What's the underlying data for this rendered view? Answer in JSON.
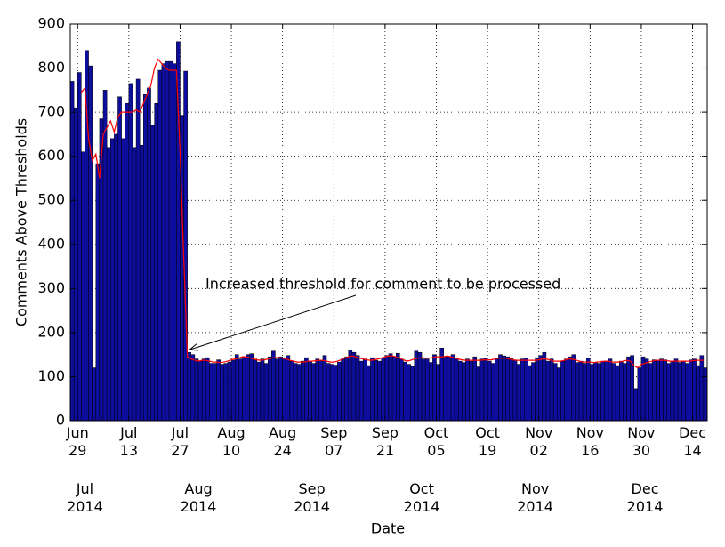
{
  "chart_data": {
    "type": "bar",
    "x_label": "Date",
    "y_label": "Comments Above Thresholds",
    "annotation": "Increased threshold for comment to be processed",
    "ylim": [
      0,
      900
    ],
    "yticks": [
      0,
      100,
      200,
      300,
      400,
      500,
      600,
      700,
      800,
      900
    ],
    "xlim": [
      "2014-06-27",
      "2014-12-18"
    ],
    "xticks": [
      {
        "value": "2014-06-29",
        "label": "Jun\n29"
      },
      {
        "value": "2014-07-13",
        "label": "Jul\n13"
      },
      {
        "value": "2014-07-27",
        "label": "Jul\n27"
      },
      {
        "value": "2014-08-10",
        "label": "Aug\n10"
      },
      {
        "value": "2014-08-24",
        "label": "Aug\n24"
      },
      {
        "value": "2014-09-07",
        "label": "Sep\n07"
      },
      {
        "value": "2014-09-21",
        "label": "Sep\n21"
      },
      {
        "value": "2014-10-05",
        "label": "Oct\n05"
      },
      {
        "value": "2014-10-19",
        "label": "Oct\n19"
      },
      {
        "value": "2014-11-02",
        "label": "Nov\n02"
      },
      {
        "value": "2014-11-16",
        "label": "Nov\n16"
      },
      {
        "value": "2014-11-30",
        "label": "Nov\n30"
      },
      {
        "value": "2014-12-14",
        "label": "Dec\n14"
      }
    ],
    "month_ticks": [
      {
        "value": "2014-07-01",
        "label": "Jul\n2014"
      },
      {
        "value": "2014-08-01",
        "label": "Aug\n2014"
      },
      {
        "value": "2014-09-01",
        "label": "Sep\n2014"
      },
      {
        "value": "2014-10-01",
        "label": "Oct\n2014"
      },
      {
        "value": "2014-11-01",
        "label": "Nov\n2014"
      },
      {
        "value": "2014-12-01",
        "label": "Dec\n2014"
      }
    ],
    "grid": true,
    "x": [
      "2014-06-27",
      "2014-06-28",
      "2014-06-29",
      "2014-06-30",
      "2014-07-01",
      "2014-07-02",
      "2014-07-03",
      "2014-07-04",
      "2014-07-05",
      "2014-07-06",
      "2014-07-07",
      "2014-07-08",
      "2014-07-09",
      "2014-07-10",
      "2014-07-11",
      "2014-07-12",
      "2014-07-13",
      "2014-07-14",
      "2014-07-15",
      "2014-07-16",
      "2014-07-17",
      "2014-07-18",
      "2014-07-19",
      "2014-07-20",
      "2014-07-21",
      "2014-07-22",
      "2014-07-23",
      "2014-07-24",
      "2014-07-25",
      "2014-07-26",
      "2014-07-27",
      "2014-07-28",
      "2014-07-29",
      "2014-07-30",
      "2014-07-31",
      "2014-08-01",
      "2014-08-02",
      "2014-08-03",
      "2014-08-04",
      "2014-08-05",
      "2014-08-06",
      "2014-08-07",
      "2014-08-08",
      "2014-08-09",
      "2014-08-10",
      "2014-08-11",
      "2014-08-12",
      "2014-08-13",
      "2014-08-14",
      "2014-08-15",
      "2014-08-16",
      "2014-08-17",
      "2014-08-18",
      "2014-08-19",
      "2014-08-20",
      "2014-08-21",
      "2014-08-22",
      "2014-08-23",
      "2014-08-24",
      "2014-08-25",
      "2014-08-26",
      "2014-08-27",
      "2014-08-28",
      "2014-08-29",
      "2014-08-30",
      "2014-08-31",
      "2014-09-01",
      "2014-09-02",
      "2014-09-03",
      "2014-09-04",
      "2014-09-05",
      "2014-09-06",
      "2014-09-07",
      "2014-09-08",
      "2014-09-09",
      "2014-09-10",
      "2014-09-11",
      "2014-09-12",
      "2014-09-13",
      "2014-09-14",
      "2014-09-15",
      "2014-09-16",
      "2014-09-17",
      "2014-09-18",
      "2014-09-19",
      "2014-09-20",
      "2014-09-21",
      "2014-09-22",
      "2014-09-23",
      "2014-09-24",
      "2014-09-25",
      "2014-09-26",
      "2014-09-27",
      "2014-09-28",
      "2014-09-29",
      "2014-09-30",
      "2014-10-01",
      "2014-10-02",
      "2014-10-03",
      "2014-10-04",
      "2014-10-05",
      "2014-10-06",
      "2014-10-07",
      "2014-10-08",
      "2014-10-09",
      "2014-10-10",
      "2014-10-11",
      "2014-10-12",
      "2014-10-13",
      "2014-10-14",
      "2014-10-15",
      "2014-10-16",
      "2014-10-17",
      "2014-10-18",
      "2014-10-19",
      "2014-10-20",
      "2014-10-21",
      "2014-10-22",
      "2014-10-23",
      "2014-10-24",
      "2014-10-25",
      "2014-10-26",
      "2014-10-27",
      "2014-10-28",
      "2014-10-29",
      "2014-10-30",
      "2014-10-31",
      "2014-11-01",
      "2014-11-02",
      "2014-11-03",
      "2014-11-04",
      "2014-11-05",
      "2014-11-06",
      "2014-11-07",
      "2014-11-08",
      "2014-11-09",
      "2014-11-10",
      "2014-11-11",
      "2014-11-12",
      "2014-11-13",
      "2014-11-14",
      "2014-11-15",
      "2014-11-16",
      "2014-11-17",
      "2014-11-18",
      "2014-11-19",
      "2014-11-20",
      "2014-11-21",
      "2014-11-22",
      "2014-11-23",
      "2014-11-24",
      "2014-11-25",
      "2014-11-26",
      "2014-11-27",
      "2014-11-28",
      "2014-11-29",
      "2014-11-30",
      "2014-12-01",
      "2014-12-02",
      "2014-12-03",
      "2014-12-04",
      "2014-12-05",
      "2014-12-06",
      "2014-12-07",
      "2014-12-08",
      "2014-12-09",
      "2014-12-10",
      "2014-12-11",
      "2014-12-12",
      "2014-12-13",
      "2014-12-14",
      "2014-12-15",
      "2014-12-16",
      "2014-12-17"
    ],
    "series": [
      {
        "type": "bar",
        "color": "#0d0d9e",
        "values": [
          770,
          710,
          790,
          610,
          840,
          805,
          120,
          583,
          685,
          750,
          620,
          640,
          650,
          735,
          640,
          720,
          765,
          620,
          775,
          625,
          740,
          755,
          670,
          720,
          795,
          810,
          815,
          815,
          810,
          860,
          693,
          793,
          155,
          150,
          140,
          135,
          140,
          143,
          130,
          130,
          138,
          128,
          130,
          133,
          137,
          150,
          140,
          145,
          150,
          152,
          140,
          133,
          140,
          130,
          145,
          158,
          140,
          145,
          143,
          148,
          135,
          130,
          128,
          135,
          143,
          135,
          130,
          140,
          136,
          148,
          130,
          128,
          126,
          133,
          140,
          145,
          160,
          155,
          148,
          135,
          140,
          125,
          143,
          137,
          135,
          142,
          148,
          152,
          145,
          153,
          140,
          133,
          128,
          123,
          158,
          155,
          140,
          140,
          132,
          150,
          128,
          165,
          145,
          145,
          150,
          142,
          135,
          132,
          140,
          135,
          145,
          122,
          140,
          142,
          135,
          130,
          140,
          150,
          147,
          145,
          142,
          137,
          128,
          140,
          142,
          125,
          132,
          143,
          148,
          155,
          135,
          140,
          130,
          120,
          135,
          140,
          145,
          150,
          132,
          135,
          130,
          142,
          128,
          132,
          130,
          135,
          135,
          140,
          130,
          125,
          135,
          130,
          145,
          148,
          73,
          120,
          145,
          140,
          130,
          138,
          137,
          140,
          138,
          130,
          135,
          140,
          132,
          135,
          130,
          138,
          140,
          125,
          148,
          120
        ]
      },
      {
        "type": "line",
        "color": "#ff0000",
        "values": [
          null,
          null,
          null,
          745,
          755,
          640,
          590,
          605,
          550,
          650,
          665,
          680,
          655,
          690,
          700,
          700,
          700,
          700,
          705,
          700,
          720,
          740,
          760,
          800,
          820,
          810,
          800,
          795,
          795,
          795,
          610,
          370,
          145,
          140,
          137,
          135,
          137,
          137,
          135,
          133,
          133,
          132,
          133,
          135,
          138,
          140,
          142,
          145,
          145,
          143,
          140,
          138,
          137,
          138,
          140,
          142,
          143,
          143,
          142,
          140,
          137,
          135,
          133,
          133,
          133,
          135,
          135,
          136,
          137,
          137,
          135,
          133,
          133,
          135,
          138,
          142,
          145,
          147,
          145,
          142,
          140,
          138,
          137,
          138,
          140,
          142,
          145,
          147,
          147,
          145,
          142,
          138,
          135,
          137,
          140,
          142,
          143,
          142,
          142,
          143,
          145,
          145,
          145,
          147,
          145,
          142,
          140,
          138,
          137,
          137,
          137,
          137,
          137,
          138,
          138,
          138,
          140,
          142,
          142,
          142,
          140,
          138,
          137,
          137,
          137,
          137,
          137,
          137,
          138,
          140,
          140,
          138,
          135,
          135,
          135,
          137,
          140,
          140,
          138,
          135,
          133,
          133,
          133,
          132,
          133,
          134,
          135,
          135,
          133,
          133,
          133,
          135,
          137,
          135,
          125,
          120,
          128,
          130,
          133,
          135,
          137,
          137,
          137,
          136,
          135,
          135,
          135,
          135,
          135,
          135,
          136,
          137,
          137,
          137
        ]
      }
    ]
  }
}
